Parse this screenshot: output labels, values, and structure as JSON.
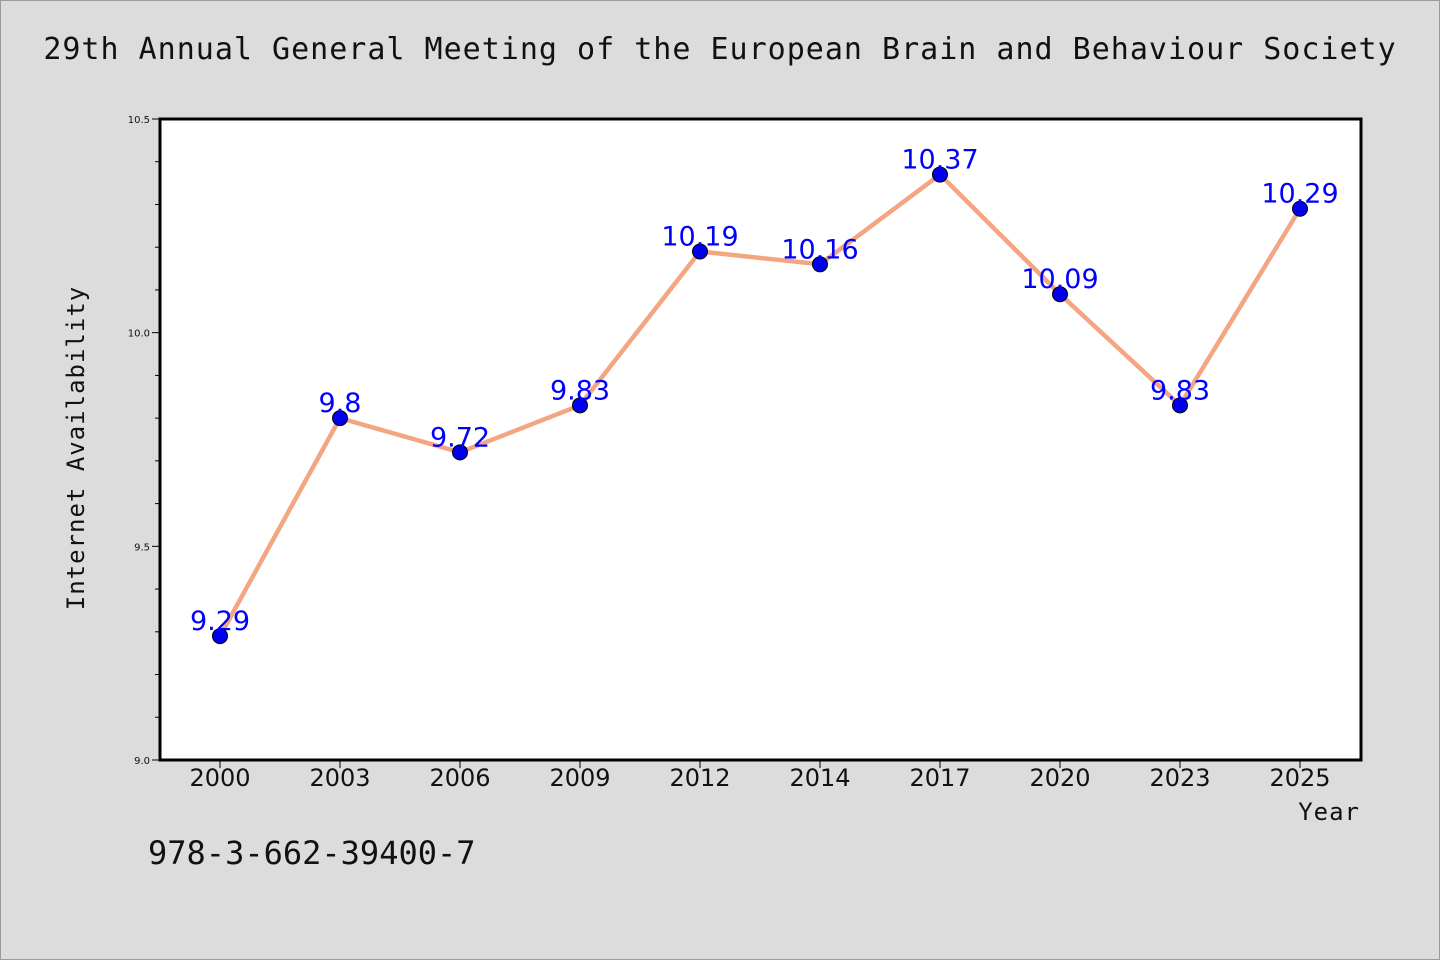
{
  "header": {
    "title": "29th Annual General Meeting of the European Brain and Behaviour Society"
  },
  "footer": {
    "isbn": "978-3-662-39400-7"
  },
  "chart_data": {
    "type": "line",
    "title": "29th Annual General Meeting of the European Brain and Behaviour Society",
    "xlabel": "Year",
    "ylabel": "Internet Availability",
    "categories": [
      "2000",
      "2003",
      "2006",
      "2009",
      "2012",
      "2014",
      "2017",
      "2020",
      "2023",
      "2025"
    ],
    "series": [
      {
        "values": [
          9.29,
          9.8,
          9.72,
          9.83,
          10.19,
          10.16,
          10.37,
          10.09,
          9.83,
          10.29
        ],
        "line_color": "#f4a582",
        "marker_color": "#0000ee",
        "label_color": "#0000ff"
      }
    ],
    "data_labels": [
      "9.29",
      "9.8",
      "9.72",
      "9.83",
      "10.19",
      "10.16",
      "10.37",
      "10.09",
      "9.83",
      "10.29"
    ],
    "ylim": [
      9.0,
      10.5
    ],
    "y_ticks": [
      "9.0",
      "9.5",
      "10.0",
      "10.5"
    ],
    "grid": false,
    "legend": "none",
    "colors": {
      "background": "#dcdcdc",
      "plot_area": "#ffffff"
    }
  }
}
